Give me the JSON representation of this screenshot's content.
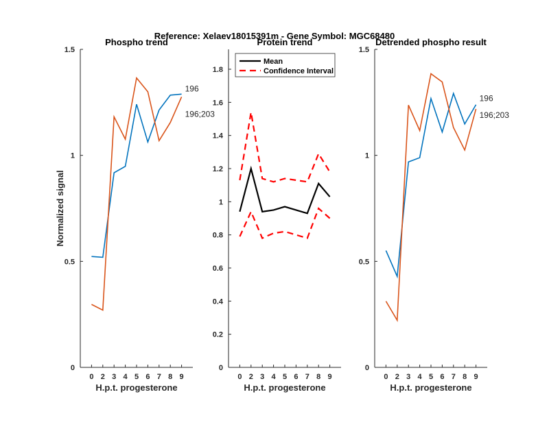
{
  "suptitle": "Reference:  Xelaev18015391m - Gene Symbol:  MGC68480",
  "chart_data": [
    {
      "type": "line",
      "title": "Phospho trend",
      "xlabel": "H.p.t. progesterone",
      "ylabel": "Normalized signal",
      "categories": [
        "0",
        "2",
        "3",
        "4",
        "5",
        "6",
        "7",
        "8",
        "9"
      ],
      "ylim": [
        0,
        1.5
      ],
      "yticks": [
        "0",
        "0.5",
        "1",
        "1.5"
      ],
      "yticks_values": [
        0,
        0.5,
        1,
        1.5
      ],
      "series": [
        {
          "name": "196",
          "color": "#0072BD",
          "values": [
            0.523,
            0.519,
            0.918,
            0.948,
            1.241,
            1.063,
            1.214,
            1.284,
            1.289
          ]
        },
        {
          "name": "196;203",
          "color": "#D95319",
          "values": [
            0.297,
            0.27,
            1.182,
            1.076,
            1.365,
            1.3,
            1.069,
            1.155,
            1.276
          ]
        }
      ]
    },
    {
      "type": "line",
      "title": "Protein trend",
      "xlabel": "H.p.t. progesterone",
      "categories": [
        "0",
        "2",
        "3",
        "4",
        "5",
        "6",
        "7",
        "8",
        "9"
      ],
      "ylim": [
        0,
        1.92
      ],
      "yticks": [
        "0",
        "0.2",
        "0.4",
        "0.6",
        "0.8",
        "1",
        "1.2",
        "1.4",
        "1.6",
        "1.8"
      ],
      "yticks_values": [
        0,
        0.2,
        0.4,
        0.6,
        0.8,
        1,
        1.2,
        1.4,
        1.6,
        1.8
      ],
      "legend": [
        "Mean",
        "Confidence Interval"
      ],
      "legend_position": "top",
      "series": [
        {
          "name": "Mean",
          "color": "#000000",
          "style": "solid",
          "values": [
            0.94,
            1.2,
            0.94,
            0.95,
            0.97,
            0.95,
            0.93,
            1.11,
            1.03
          ]
        },
        {
          "name": "Confidence Interval upper",
          "color": "#FF0000",
          "style": "dashed",
          "values": [
            1.13,
            1.54,
            1.14,
            1.12,
            1.14,
            1.13,
            1.12,
            1.29,
            1.18
          ]
        },
        {
          "name": "Confidence Interval lower",
          "color": "#FF0000",
          "style": "dashed",
          "values": [
            0.79,
            0.94,
            0.78,
            0.81,
            0.82,
            0.8,
            0.78,
            0.96,
            0.9
          ]
        }
      ]
    },
    {
      "type": "line",
      "title": "Detrended phospho result",
      "xlabel": "H.p.t. progesterone",
      "categories": [
        "0",
        "2",
        "3",
        "4",
        "5",
        "6",
        "7",
        "8",
        "9"
      ],
      "ylim": [
        0,
        1.5
      ],
      "yticks": [
        "0",
        "0.5",
        "1",
        "1.5"
      ],
      "yticks_values": [
        0,
        0.5,
        1,
        1.5
      ],
      "series": [
        {
          "name": "196",
          "color": "#0072BD",
          "values": [
            0.551,
            0.429,
            0.969,
            0.989,
            1.268,
            1.11,
            1.292,
            1.148,
            1.239
          ]
        },
        {
          "name": "196;203",
          "color": "#D95319",
          "values": [
            0.312,
            0.222,
            1.237,
            1.117,
            1.385,
            1.346,
            1.131,
            1.025,
            1.219
          ]
        }
      ]
    }
  ]
}
